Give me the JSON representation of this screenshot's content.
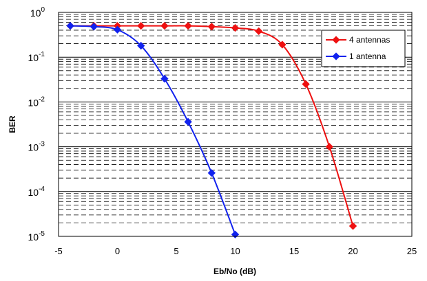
{
  "chart_data": {
    "type": "line",
    "xlabel": "Eb/No (dB)",
    "ylabel": "BER",
    "xlim": [
      -5,
      25
    ],
    "ylim": [
      1e-05,
      1
    ],
    "y_scale": "log",
    "x_ticks": [
      "-5",
      "0",
      "5",
      "10",
      "15",
      "20",
      "25"
    ],
    "y_ticks": [
      {
        "base": "10",
        "exp": "0"
      },
      {
        "base": "10",
        "exp": "-1"
      },
      {
        "base": "10",
        "exp": "-2"
      },
      {
        "base": "10",
        "exp": "-3"
      },
      {
        "base": "10",
        "exp": "-4"
      },
      {
        "base": "10",
        "exp": "-5"
      }
    ],
    "grid": "horizontal dashed minor, solid major",
    "legend_position": "top-right",
    "series": [
      {
        "name": "4 antennas",
        "color": "#ee1111",
        "x": [
          -4,
          -2,
          0,
          2,
          4,
          6,
          8,
          10,
          12,
          14,
          16,
          18,
          20
        ],
        "y": [
          0.5,
          0.5,
          0.5,
          0.5,
          0.5,
          0.5,
          0.48,
          0.45,
          0.38,
          0.19,
          0.025,
          0.001,
          1.7e-05
        ]
      },
      {
        "name": "1 antenna",
        "color": "#1122ee",
        "x": [
          -4,
          -2,
          0,
          2,
          4,
          6,
          8,
          10
        ],
        "y": [
          0.5,
          0.48,
          0.41,
          0.18,
          0.033,
          0.0036,
          0.00026,
          1.1e-05
        ]
      }
    ]
  }
}
